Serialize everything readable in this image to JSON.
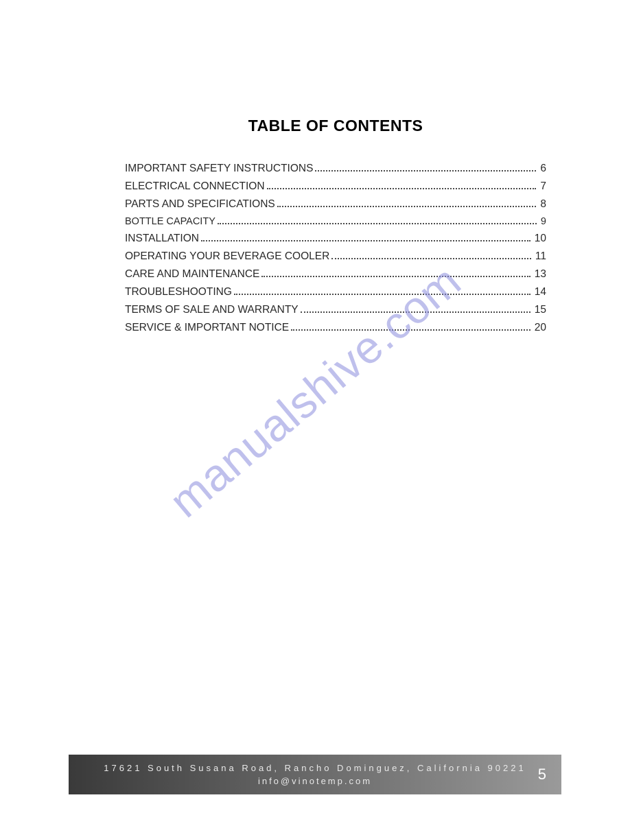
{
  "document": {
    "title": "TABLE  OF CONTENTS",
    "watermark_text": "manualshive.com",
    "watermark_color": "#8b8dde",
    "background_color": "#ffffff",
    "text_color": "#282828",
    "title_fontsize": 23,
    "body_fontsize": 15.5
  },
  "toc": {
    "entries": [
      {
        "label": "IMPORTANT SAFETY INSTRUCTIONS",
        "page": "6",
        "small": false
      },
      {
        "label": "ELECTRICAL CONNECTION",
        "page": "7",
        "small": false
      },
      {
        "label": "PARTS AND SPECIFICATIONS",
        "page": "8",
        "small": false
      },
      {
        "label": "BOTTLE CAPACITY",
        "page": "9",
        "small": true
      },
      {
        "label": "INSTALLATION",
        "page": "10",
        "small": false
      },
      {
        "label": "OPERATING YOUR BEVERAGE COOLER ",
        "page": "11",
        "small": false
      },
      {
        "label": "CARE AND MAINTENANCE",
        "page": "13",
        "small": false
      },
      {
        "label": "TROUBLESHOOTING",
        "page": " 14",
        "small": false
      },
      {
        "label": "TERMS OF SALE AND WARRANTY",
        "page": " 15",
        "small": false
      },
      {
        "label": "SERVICE & IMPORTANT NOTICE",
        "page": " 20",
        "small": false
      }
    ]
  },
  "footer": {
    "address": "17621 South Susana Road, Rancho Dominguez, California 90221",
    "email": "info@vinotemp.com",
    "page_number": "5",
    "gradient_start": "#3a3a3a",
    "gradient_end": "#9a9a9a",
    "text_color": "#e8e8e8"
  }
}
